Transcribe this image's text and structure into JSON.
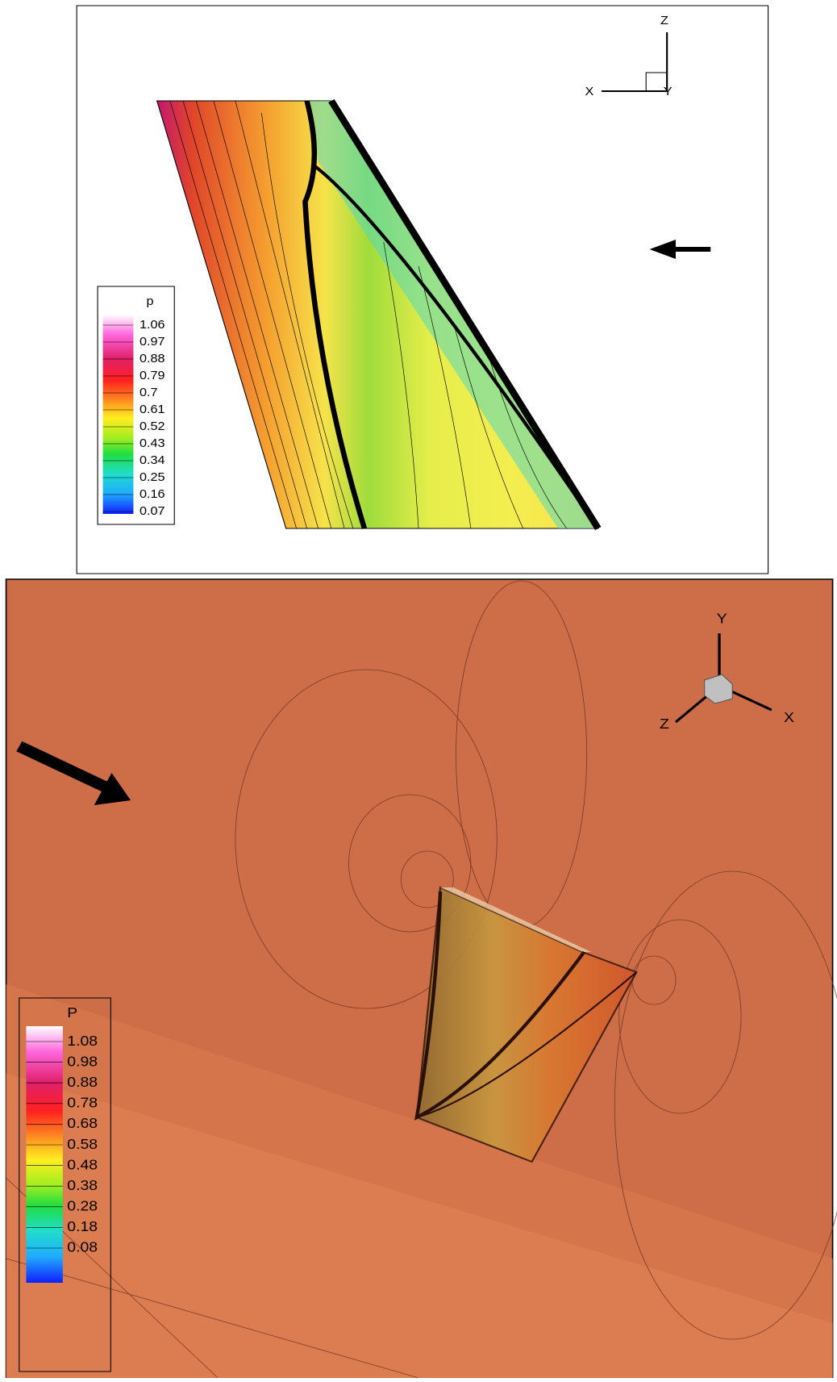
{
  "top_panel": {
    "axis_labels": {
      "x": "X",
      "z": "Z",
      "y": "Y"
    },
    "legend": {
      "title": "p",
      "levels": [
        "1.06",
        "0.97",
        "0.88",
        "0.79",
        "0.7",
        "0.61",
        "0.52",
        "0.43",
        "0.34",
        "0.25",
        "0.16",
        "0.07"
      ]
    }
  },
  "bottom_panel": {
    "axis_labels": {
      "y": "Y",
      "z": "Z",
      "x": "X"
    },
    "legend": {
      "title": "P",
      "levels": [
        "1.08",
        "0.98",
        "0.88",
        "0.78",
        "0.68",
        "0.58",
        "0.48",
        "0.38",
        "0.28",
        "0.18",
        "0.08"
      ]
    }
  }
}
